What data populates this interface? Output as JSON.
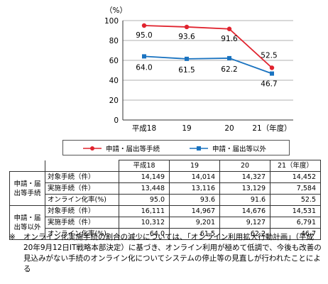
{
  "chart_data": {
    "type": "line",
    "unit": "（%）",
    "categories": [
      "平成18",
      "19",
      "20",
      "21（年度）"
    ],
    "ylim": [
      0,
      100
    ],
    "yticks": [
      0,
      20,
      40,
      60,
      80,
      100
    ],
    "grid": true,
    "series": [
      {
        "name": "申請・届出等手続",
        "color": "#e0232e",
        "marker": "circle",
        "values": [
          95.0,
          93.6,
          91.6,
          52.5
        ],
        "labels": [
          "95.0",
          "93.6",
          "91.6",
          "52.5"
        ]
      },
      {
        "name": "申請・届出等以外",
        "color": "#1a73c0",
        "marker": "square",
        "values": [
          64.0,
          61.5,
          62.2,
          46.7
        ],
        "labels": [
          "64.0",
          "61.5",
          "62.2",
          "46.7"
        ]
      }
    ]
  },
  "table": {
    "header": [
      "平成18",
      "19",
      "20",
      "21（年度）"
    ],
    "groups": [
      {
        "name": "申請・届出等手続",
        "rows": [
          {
            "label": "対象手続（件）",
            "values": [
              "14,149",
              "14,014",
              "14,327",
              "14,452"
            ]
          },
          {
            "label": "実施手続（件）",
            "values": [
              "13,448",
              "13,116",
              "13,129",
              "7,584"
            ]
          },
          {
            "label": "オンライン化率(%)",
            "values": [
              "95.0",
              "93.6",
              "91.6",
              "52.5"
            ]
          }
        ]
      },
      {
        "name": "申請・届出等以外",
        "rows": [
          {
            "label": "対象手続（件）",
            "values": [
              "16,111",
              "14,967",
              "14,676",
              "14,531"
            ]
          },
          {
            "label": "実施手続（件）",
            "values": [
              "10,312",
              "9,201",
              "9,127",
              "6,791"
            ]
          },
          {
            "label": "オンライン化率(%)",
            "values": [
              "64.0",
              "61.5",
              "62.2",
              "46.7"
            ]
          }
        ]
      }
    ]
  },
  "note": {
    "mark": "※",
    "text": "オンライン化実施手続の割合の減少については、「オンライン利用拡大行動計画」（平成20年9月12日IT戦略本部決定）に基づき、オンライン利用が極めて低調で、今後も改善の見込みがない手続のオンライン化についてシステムの停止等の見直しが行われたことによる"
  }
}
